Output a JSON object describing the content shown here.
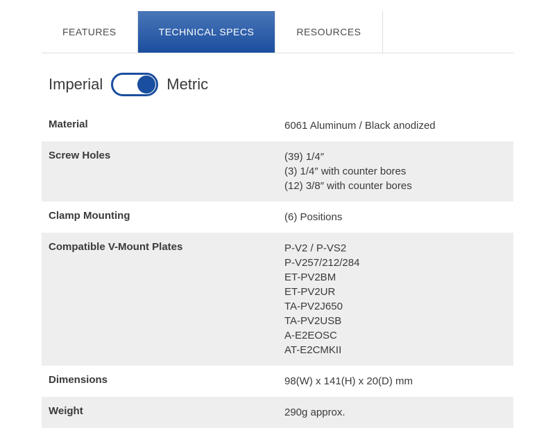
{
  "tabs": {
    "features": "FEATURES",
    "technical_specs": "TECHNICAL SPECS",
    "resources": "RESOURCES"
  },
  "unit_toggle": {
    "imperial": "Imperial",
    "metric": "Metric"
  },
  "specs": {
    "material": {
      "label": "Material",
      "value": "6061 Aluminum / Black anodized"
    },
    "screw_holes": {
      "label": "Screw Holes",
      "value": "(39) 1/4″\n(3) 1/4″ with counter bores\n(12) 3/8″ with counter bores"
    },
    "clamp_mounting": {
      "label": "Clamp Mounting",
      "value": "(6) Positions"
    },
    "compatible_plates": {
      "label": "Compatible V-Mount Plates",
      "value": "P-V2 / P-VS2\nP-V257/212/284\nET-PV2BM\nET-PV2UR\nTA-PV2J650\nTA-PV2USB\nA-E2EOSC\nAT-E2CMKII"
    },
    "dimensions": {
      "label": "Dimensions",
      "value": "98(W) x 141(H) x 20(D) mm"
    },
    "weight": {
      "label": "Weight",
      "value": "290g approx."
    }
  }
}
